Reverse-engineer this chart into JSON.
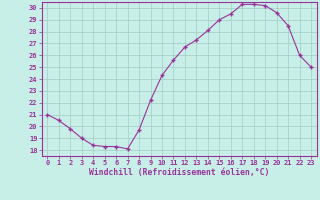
{
  "x": [
    0,
    1,
    2,
    3,
    4,
    5,
    6,
    7,
    8,
    9,
    10,
    11,
    12,
    13,
    14,
    15,
    16,
    17,
    18,
    19,
    20,
    21,
    22,
    23
  ],
  "y": [
    21.0,
    20.5,
    19.8,
    19.0,
    18.4,
    18.3,
    18.3,
    18.1,
    19.7,
    22.2,
    24.3,
    25.6,
    26.7,
    27.3,
    28.1,
    29.0,
    29.5,
    30.3,
    30.3,
    30.2,
    29.6,
    28.5,
    26.0,
    25.0
  ],
  "line_color": "#993399",
  "marker": "P",
  "marker_size": 2.5,
  "bg_color": "#c8eee8",
  "grid_color": "#a0ccc4",
  "xlabel": "Windchill (Refroidissement éolien,°C)",
  "xlabel_color": "#993399",
  "tick_color": "#993399",
  "ylim_min": 17.5,
  "ylim_max": 30.5,
  "xlim_min": -0.5,
  "xlim_max": 23.5,
  "yticks": [
    18,
    19,
    20,
    21,
    22,
    23,
    24,
    25,
    26,
    27,
    28,
    29,
    30
  ],
  "xticks": [
    0,
    1,
    2,
    3,
    4,
    5,
    6,
    7,
    8,
    9,
    10,
    11,
    12,
    13,
    14,
    15,
    16,
    17,
    18,
    19,
    20,
    21,
    22,
    23
  ],
  "xtick_labels": [
    "0",
    "1",
    "2",
    "3",
    "4",
    "5",
    "6",
    "7",
    "8",
    "9",
    "10",
    "11",
    "12",
    "13",
    "14",
    "15",
    "16",
    "17",
    "18",
    "19",
    "20",
    "21",
    "22",
    "23"
  ],
  "ytick_labels": [
    "18",
    "19",
    "20",
    "21",
    "22",
    "23",
    "24",
    "25",
    "26",
    "27",
    "28",
    "29",
    "30"
  ]
}
